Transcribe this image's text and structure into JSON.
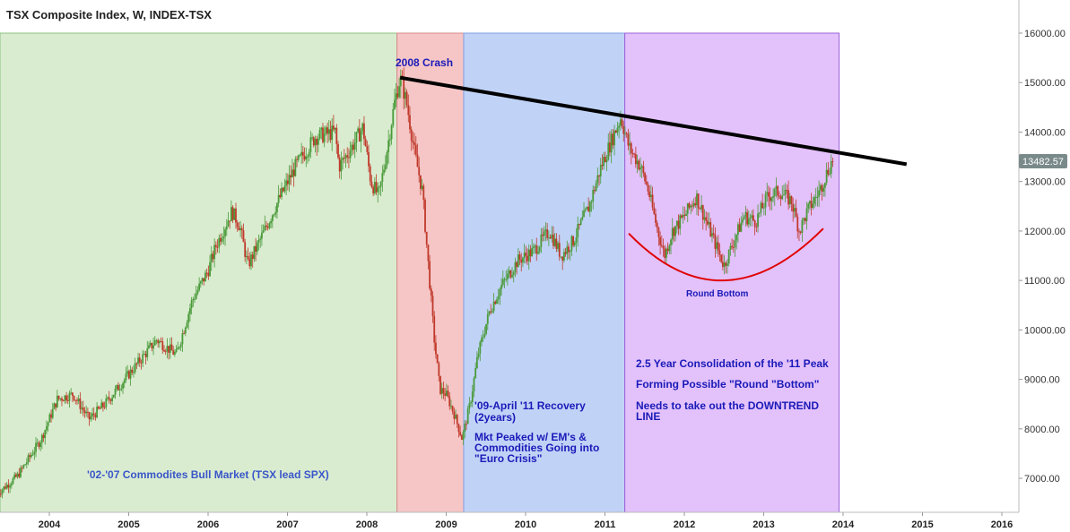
{
  "chart_data": {
    "type": "candlestick",
    "title": "TSX Composite Index, W, INDEX-TSX",
    "price_label": "13482.57",
    "x_ticks": [
      "2004",
      "2005",
      "2006",
      "2007",
      "2008",
      "2009",
      "2010",
      "2011",
      "2012",
      "2013",
      "2014",
      "2015",
      "2016"
    ],
    "y_ticks": [
      "7000.00",
      "8000.00",
      "9000.00",
      "10000.00",
      "11000.00",
      "12000.00",
      "13000.00",
      "14000.00",
      "15000.00",
      "16000.00"
    ],
    "xlim": [
      2003.35,
      2016.2
    ],
    "ylim": [
      6350,
      16700
    ],
    "path": [
      [
        2003.35,
        6700
      ],
      [
        2003.6,
        7050
      ],
      [
        2003.9,
        7800
      ],
      [
        2004.1,
        8600
      ],
      [
        2004.3,
        8700
      ],
      [
        2004.5,
        8200
      ],
      [
        2004.7,
        8500
      ],
      [
        2004.95,
        9000
      ],
      [
        2005.2,
        9500
      ],
      [
        2005.35,
        9800
      ],
      [
        2005.6,
        9500
      ],
      [
        2005.8,
        10600
      ],
      [
        2006.0,
        11200
      ],
      [
        2006.1,
        11700
      ],
      [
        2006.3,
        12400
      ],
      [
        2006.4,
        12100
      ],
      [
        2006.5,
        11300
      ],
      [
        2006.65,
        11800
      ],
      [
        2006.85,
        12500
      ],
      [
        2007.1,
        13300
      ],
      [
        2007.35,
        13900
      ],
      [
        2007.6,
        14000
      ],
      [
        2007.65,
        13300
      ],
      [
        2007.85,
        13800
      ],
      [
        2007.95,
        14100
      ],
      [
        2008.05,
        13000
      ],
      [
        2008.15,
        12700
      ],
      [
        2008.25,
        13600
      ],
      [
        2008.35,
        14600
      ],
      [
        2008.42,
        15100
      ],
      [
        2008.5,
        14600
      ],
      [
        2008.6,
        13600
      ],
      [
        2008.7,
        12800
      ],
      [
        2008.78,
        11200
      ],
      [
        2008.85,
        9800
      ],
      [
        2008.92,
        8800
      ],
      [
        2009.0,
        8700
      ],
      [
        2009.1,
        8300
      ],
      [
        2009.2,
        7800
      ],
      [
        2009.3,
        8500
      ],
      [
        2009.4,
        9500
      ],
      [
        2009.55,
        10400
      ],
      [
        2009.7,
        10900
      ],
      [
        2009.9,
        11400
      ],
      [
        2010.1,
        11600
      ],
      [
        2010.3,
        12000
      ],
      [
        2010.45,
        11500
      ],
      [
        2010.6,
        11800
      ],
      [
        2010.8,
        12500
      ],
      [
        2010.95,
        13300
      ],
      [
        2011.1,
        13900
      ],
      [
        2011.2,
        14300
      ],
      [
        2011.3,
        13700
      ],
      [
        2011.45,
        13300
      ],
      [
        2011.55,
        12800
      ],
      [
        2011.65,
        12100
      ],
      [
        2011.75,
        11500
      ],
      [
        2011.85,
        12000
      ],
      [
        2012.0,
        12300
      ],
      [
        2012.15,
        12700
      ],
      [
        2012.3,
        12100
      ],
      [
        2012.4,
        11700
      ],
      [
        2012.5,
        11300
      ],
      [
        2012.6,
        11700
      ],
      [
        2012.75,
        12300
      ],
      [
        2012.9,
        12200
      ],
      [
        2013.05,
        12700
      ],
      [
        2013.2,
        12800
      ],
      [
        2013.35,
        12600
      ],
      [
        2013.45,
        12000
      ],
      [
        2013.55,
        12400
      ],
      [
        2013.7,
        12800
      ],
      [
        2013.8,
        13200
      ],
      [
        2013.88,
        13480
      ]
    ],
    "zones": [
      {
        "label": "'02-'07 Commodites Bull Market (TSX lead SPX)",
        "start": 2003.35,
        "end": 2008.38,
        "fill": "#d9ecd0",
        "stroke": "#8cc07e"
      },
      {
        "label": "2008 Crash",
        "start": 2008.38,
        "end": 2009.22,
        "fill": "#f6c6c6",
        "stroke": "#d98a8a"
      },
      {
        "label": "'09-April '11 Recovery (2years)",
        "start": 2009.22,
        "end": 2011.25,
        "fill": "#c0d3f7",
        "stroke": "#7f9fe0"
      },
      {
        "label": "2.5 Year Consolidation of the '11 Peak",
        "start": 2011.25,
        "end": 2013.95,
        "fill": "#e3c1fb",
        "stroke": "#9b62d6"
      }
    ],
    "annotations": {
      "crash": "2008 Crash",
      "bull": "'02-'07 Commodites Bull Market (TSX lead SPX)",
      "recovery_1": "'09-April '11 Recovery",
      "recovery_2": "(2years)",
      "peak_1": "Mkt Peaked w/ EM's &",
      "peak_2": "Commodities Going into",
      "peak_3": "\"Euro Crisis\"",
      "consol_1": "2.5 Year Consolidation of the '11 Peak",
      "consol_2": "Forming Possible \"Round \"Bottom\"",
      "consol_3": "Needs to take out the DOWNTREND",
      "consol_4": "LINE",
      "round_bottom": "Round Bottom"
    },
    "downtrend_line": {
      "from": [
        2008.42,
        15100
      ],
      "to": [
        2014.8,
        13350
      ]
    },
    "round_bottom_curve": {
      "from": [
        2011.3,
        11950
      ],
      "low": [
        2012.5,
        11000
      ],
      "to": [
        2013.75,
        12050
      ]
    },
    "colors": {
      "up": "#4a9a3a",
      "down": "#c0392b",
      "trendline": "#000000",
      "curve": "#e00000",
      "annotation": "#1a1ab8",
      "bull_text": "#3a56c8",
      "price_badge": "#7a8a8a"
    }
  }
}
